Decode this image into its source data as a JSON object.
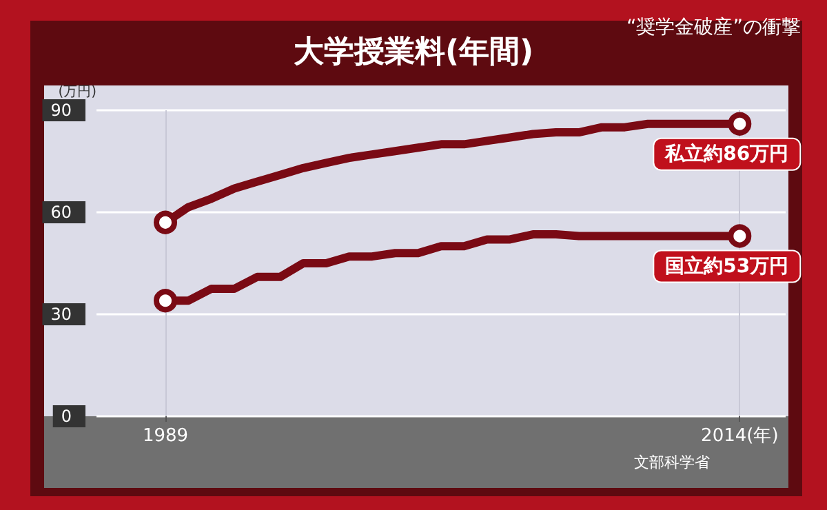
{
  "chart_data": {
    "type": "line",
    "title": "大学授業料(年間)",
    "ylabel": "(万円)",
    "annotations": [
      "“奨学金破産”の衝撃",
      "文部科学省"
    ],
    "x": [
      1989,
      1990,
      1991,
      1992,
      1993,
      1994,
      1995,
      1996,
      1997,
      1998,
      1999,
      2000,
      2001,
      2002,
      2003,
      2004,
      2005,
      2006,
      2007,
      2008,
      2009,
      2010,
      2011,
      2012,
      2013,
      2014
    ],
    "series": [
      {
        "name": "私立約86万円",
        "color": "#7a0a14",
        "values": [
          57,
          61.5,
          64,
          67,
          69,
          71,
          73,
          74.5,
          76,
          77,
          78,
          79,
          80,
          80,
          81,
          82,
          83,
          83.5,
          83.5,
          85,
          85,
          86,
          86,
          86,
          86,
          86
        ]
      },
      {
        "name": "国立約53万円",
        "color": "#7a0a14",
        "values": [
          34,
          34,
          37.5,
          37.5,
          41,
          41,
          45,
          45,
          47,
          47,
          48,
          48,
          50,
          50,
          52,
          52,
          53.5,
          53.5,
          53,
          53,
          53,
          53,
          53,
          53,
          53,
          53
        ]
      }
    ],
    "xlim": [
      1986,
      2016
    ],
    "xticks": [
      1989,
      {
        "value": 2014,
        "label": "2014(年)"
      }
    ],
    "ylim": [
      0,
      90
    ],
    "yticks": [
      0,
      30,
      60,
      90
    ],
    "grid": true,
    "legend": false,
    "line_style": "solid"
  }
}
